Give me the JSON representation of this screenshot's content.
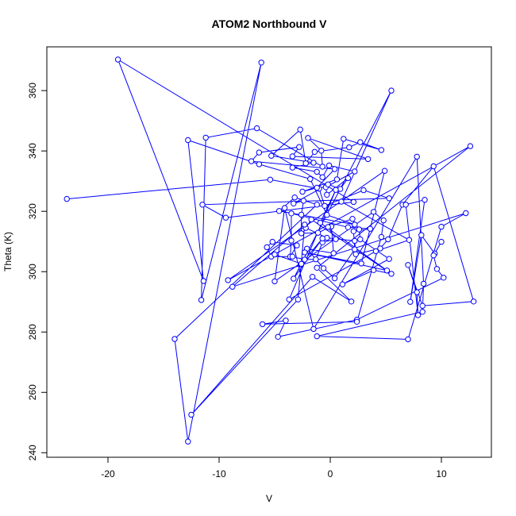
{
  "chart_data": {
    "type": "line",
    "title": "ATOM2 Northbound V",
    "xlabel": "V",
    "ylabel": "Theta (K)",
    "xlim": [
      -25.5,
      14.5
    ],
    "ylim": [
      238.5,
      374.5
    ],
    "xticks": [
      -20,
      -10,
      0,
      10
    ],
    "yticks": [
      240,
      260,
      280,
      300,
      320,
      340,
      360
    ],
    "xtick_labels": [
      "-20",
      "-10",
      "0",
      "10"
    ],
    "ytick_labels": [
      "240",
      "260",
      "280",
      "300",
      "320",
      "340",
      "360"
    ],
    "grid": false,
    "markers": "open-circle",
    "color": "#0000ff",
    "series": [
      {
        "values_xy": [
          [
            -23.7,
            324.1
          ],
          [
            -5.4,
            330.5
          ],
          [
            -1.0,
            327.5
          ],
          [
            -0.5,
            321.8
          ],
          [
            3.0,
            327.0
          ],
          [
            5.3,
            324.3
          ],
          [
            -11.5,
            322.2
          ],
          [
            -9.4,
            317.9
          ],
          [
            2.1,
            323.1
          ],
          [
            -19.1,
            370.3
          ],
          [
            -11.4,
            296.9
          ],
          [
            -12.8,
            343.6
          ],
          [
            -6.4,
            335.6
          ],
          [
            -1.8,
            330.7
          ],
          [
            -0.3,
            318.8
          ],
          [
            2.2,
            315.6
          ],
          [
            -4.6,
            320.1
          ],
          [
            -3.2,
            324.6
          ],
          [
            -1.2,
            322.2
          ],
          [
            -14.0,
            277.7
          ],
          [
            -12.8,
            243.7
          ],
          [
            -6.2,
            369.3
          ],
          [
            -11.6,
            290.6
          ],
          [
            -11.2,
            344.4
          ],
          [
            -6.6,
            347.5
          ],
          [
            -0.7,
            334.8
          ],
          [
            -0.8,
            340.1
          ],
          [
            -2.0,
            344.3
          ],
          [
            3.4,
            337.3
          ],
          [
            -3.4,
            338.2
          ],
          [
            -2.8,
            341.3
          ],
          [
            -6.4,
            339.5
          ],
          [
            -7.1,
            336.6
          ],
          [
            0.4,
            334.0
          ],
          [
            -1.2,
            327.8
          ],
          [
            -2.5,
            326.5
          ],
          [
            0.6,
            330.6
          ],
          [
            1.2,
            344.0
          ],
          [
            4.6,
            340.3
          ],
          [
            2.7,
            342.9
          ],
          [
            1.7,
            341.2
          ],
          [
            -1.4,
            339.7
          ],
          [
            -2.2,
            335.9
          ],
          [
            -2.7,
            347.1
          ],
          [
            -5.3,
            338.4
          ],
          [
            -1.5,
            336.1
          ],
          [
            -3.4,
            334.5
          ],
          [
            -1.2,
            333.1
          ],
          [
            -0.7,
            331.3
          ],
          [
            -0.1,
            335.2
          ],
          [
            2.2,
            333.2
          ],
          [
            -0.4,
            328.0
          ],
          [
            -0.3,
            325.5
          ],
          [
            1.6,
            331.0
          ],
          [
            0.9,
            327.4
          ],
          [
            -0.2,
            328.9
          ],
          [
            -3.3,
            322.6
          ],
          [
            -2.4,
            323.5
          ],
          [
            -2.6,
            318.9
          ],
          [
            -2.6,
            312.7
          ],
          [
            -1.1,
            312.9
          ],
          [
            0.1,
            315.0
          ],
          [
            0.3,
            306.1
          ],
          [
            -2.1,
            307.6
          ],
          [
            -0.6,
            301.1
          ],
          [
            0.4,
            297.8
          ],
          [
            2.2,
            307.4
          ],
          [
            2.1,
            313.4
          ],
          [
            3.6,
            314.2
          ],
          [
            1.6,
            314.7
          ],
          [
            -3.5,
            319.3
          ],
          [
            -3.5,
            310.3
          ],
          [
            -3.6,
            305.0
          ],
          [
            -3.0,
            308.7
          ],
          [
            -5.2,
            309.9
          ],
          [
            -5.7,
            308.1
          ],
          [
            -5.3,
            305.0
          ],
          [
            -3.4,
            305.0
          ],
          [
            -2.3,
            304.0
          ],
          [
            -1.3,
            304.1
          ],
          [
            -0.7,
            309.7
          ],
          [
            0.5,
            310.8
          ],
          [
            -0.2,
            314.8
          ],
          [
            2.0,
            317.5
          ],
          [
            2.6,
            314.0
          ],
          [
            2.7,
            310.7
          ],
          [
            5.3,
            304.2
          ],
          [
            1.1,
            295.8
          ],
          [
            3.9,
            300.5
          ],
          [
            5.5,
            299.3
          ],
          [
            -1.7,
            317.3
          ],
          [
            -2.2,
            314.5
          ],
          [
            -0.3,
            311.2
          ],
          [
            2.2,
            310.2
          ],
          [
            2.3,
            305.8
          ],
          [
            4.5,
            307.7
          ],
          [
            5.2,
            310.7
          ],
          [
            6.5,
            322.2
          ],
          [
            9.3,
            334.9
          ],
          [
            12.9,
            290.1
          ],
          [
            8.3,
            288.7
          ],
          [
            7.0,
            302.2
          ],
          [
            7.8,
            293.2
          ],
          [
            7.9,
            285.6
          ],
          [
            6.8,
            322.2
          ],
          [
            8.5,
            323.8
          ],
          [
            7.2,
            290.0
          ],
          [
            8.2,
            312.1
          ],
          [
            9.4,
            306.0
          ],
          [
            10.0,
            309.9
          ],
          [
            9.3,
            305.4
          ],
          [
            9.6,
            300.9
          ],
          [
            10.2,
            298.0
          ],
          [
            2.4,
            284.1
          ],
          [
            -4.7,
            278.4
          ],
          [
            -4.0,
            283.8
          ],
          [
            -6.1,
            282.6
          ],
          [
            2.4,
            283.4
          ],
          [
            4.6,
            311.5
          ],
          [
            4.8,
            317.0
          ],
          [
            3.9,
            319.8
          ],
          [
            -5.0,
            296.8
          ],
          [
            -4.1,
            321.1
          ],
          [
            -1.5,
            281.0
          ],
          [
            7.8,
            338.1
          ],
          [
            8.4,
            296.0
          ],
          [
            8.3,
            286.7
          ],
          [
            -1.2,
            278.6
          ],
          [
            7.0,
            277.6
          ],
          [
            10.0,
            314.9
          ],
          [
            12.2,
            319.4
          ],
          [
            -8.8,
            295.0
          ],
          [
            -2.3,
            315.6
          ],
          [
            -2.9,
            290.8
          ],
          [
            -12.5,
            252.6
          ],
          [
            -1.6,
            298.3
          ],
          [
            1.9,
            290.1
          ],
          [
            -1.2,
            301.3
          ],
          [
            12.6,
            341.6
          ],
          [
            -9.2,
            297.2
          ],
          [
            4.9,
            333.4
          ],
          [
            2.8,
            302.7
          ],
          [
            -2.3,
            306.4
          ],
          [
            5.1,
            300.4
          ],
          [
            -0.9,
            316.2
          ],
          [
            0.5,
            327.1
          ],
          [
            -3.7,
            290.8
          ],
          [
            4.1,
            306.8
          ],
          [
            7.1,
            310.5
          ],
          [
            1.0,
            323.2
          ],
          [
            5.5,
            360.0
          ],
          [
            -3.3,
            297.7
          ],
          [
            -0.7,
            311.0
          ],
          [
            -2.6,
            302.6
          ],
          [
            -5.0,
            305.7
          ]
        ]
      }
    ]
  }
}
